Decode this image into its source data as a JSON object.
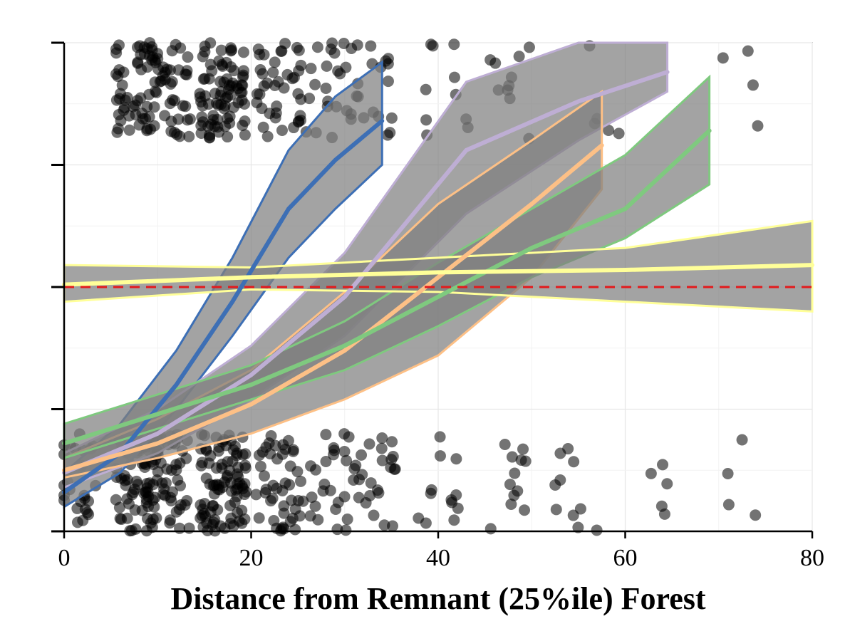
{
  "chart_data": {
    "type": "line",
    "title": "",
    "xlabel": "Distance from Remnant (25%ile) Forest",
    "ylabel": "",
    "xlim": [
      0,
      80
    ],
    "ylim": [
      0,
      1
    ],
    "x_ticks": [
      0,
      20,
      40,
      60,
      80
    ],
    "y_ticks": [
      0,
      0.25,
      0.5,
      0.75,
      1
    ],
    "y_tick_labels_shown": false,
    "grid": true,
    "legend": "none",
    "reference_line": {
      "y": 0.5,
      "style": "dashed",
      "color": "#e31a1c"
    },
    "ribbon_color": "#808080",
    "series": [
      {
        "color": "#3d6fb5",
        "x": [
          0,
          6,
          12,
          18,
          24,
          29,
          34
        ],
        "y": [
          0.08,
          0.16,
          0.3,
          0.47,
          0.66,
          0.76,
          0.84
        ],
        "lower": [
          0.05,
          0.12,
          0.25,
          0.4,
          0.56,
          0.66,
          0.75
        ],
        "upper": [
          0.12,
          0.22,
          0.37,
          0.56,
          0.78,
          0.89,
          0.96
        ]
      },
      {
        "color": "#beaed4",
        "x": [
          0,
          10,
          20,
          30,
          43,
          55,
          64.5
        ],
        "y": [
          0.12,
          0.2,
          0.32,
          0.48,
          0.78,
          0.88,
          0.94
        ],
        "lower": [
          0.09,
          0.16,
          0.27,
          0.4,
          0.65,
          0.8,
          0.9
        ],
        "upper": [
          0.16,
          0.25,
          0.38,
          0.57,
          0.92,
          1.0,
          1.0
        ]
      },
      {
        "color": "#fdc086",
        "x": [
          0,
          10,
          20,
          30,
          40,
          50,
          57.5
        ],
        "y": [
          0.125,
          0.18,
          0.26,
          0.37,
          0.52,
          0.67,
          0.79
        ],
        "lower": [
          0.11,
          0.15,
          0.2,
          0.27,
          0.36,
          0.52,
          0.7
        ],
        "upper": [
          0.15,
          0.23,
          0.33,
          0.49,
          0.67,
          0.8,
          0.9
        ]
      },
      {
        "color": "#7fc97f",
        "x": [
          0,
          10,
          20,
          30,
          40,
          50,
          60,
          69
        ],
        "y": [
          0.18,
          0.24,
          0.3,
          0.38,
          0.48,
          0.58,
          0.66,
          0.82
        ],
        "lower": [
          0.15,
          0.21,
          0.27,
          0.33,
          0.42,
          0.52,
          0.6,
          0.71
        ],
        "upper": [
          0.22,
          0.28,
          0.34,
          0.43,
          0.55,
          0.66,
          0.77,
          0.93
        ]
      },
      {
        "color": "#ffff99",
        "x": [
          0,
          20,
          40,
          60,
          80
        ],
        "y": [
          0.505,
          0.52,
          0.53,
          0.535,
          0.545
        ],
        "lower": [
          0.47,
          0.495,
          0.49,
          0.47,
          0.45
        ],
        "upper": [
          0.545,
          0.54,
          0.56,
          0.58,
          0.635
        ]
      }
    ],
    "points": {
      "color": "#000000",
      "opacity": 0.55,
      "note": "jittered binary observations at 0 and 1",
      "clusters": [
        {
          "x": 1,
          "count": 25,
          "outcome": 0
        },
        {
          "x": 8,
          "count": 60,
          "outcome": 0
        },
        {
          "x": 11,
          "count": 55,
          "outcome": 0
        },
        {
          "x": 17,
          "count": 90,
          "outcome": 0
        },
        {
          "x": 23,
          "count": 45,
          "outcome": 0
        },
        {
          "x": 28,
          "count": 25,
          "outcome": 0
        },
        {
          "x": 33,
          "count": 25,
          "outcome": 0
        },
        {
          "x": 40,
          "count": 12,
          "outcome": 0
        },
        {
          "x": 47,
          "count": 12,
          "outcome": 0
        },
        {
          "x": 55,
          "count": 10,
          "outcome": 0
        },
        {
          "x": 64,
          "count": 5,
          "outcome": 0
        },
        {
          "x": 72,
          "count": 4,
          "outcome": 0
        },
        {
          "x": 8,
          "count": 50,
          "outcome": 1
        },
        {
          "x": 11,
          "count": 45,
          "outcome": 1
        },
        {
          "x": 17,
          "count": 80,
          "outcome": 1
        },
        {
          "x": 23,
          "count": 40,
          "outcome": 1
        },
        {
          "x": 28,
          "count": 20,
          "outcome": 1
        },
        {
          "x": 33,
          "count": 20,
          "outcome": 1
        },
        {
          "x": 41,
          "count": 10,
          "outcome": 1
        },
        {
          "x": 48,
          "count": 10,
          "outcome": 1
        },
        {
          "x": 58,
          "count": 5,
          "outcome": 1
        },
        {
          "x": 72,
          "count": 4,
          "outcome": 1
        }
      ]
    }
  }
}
